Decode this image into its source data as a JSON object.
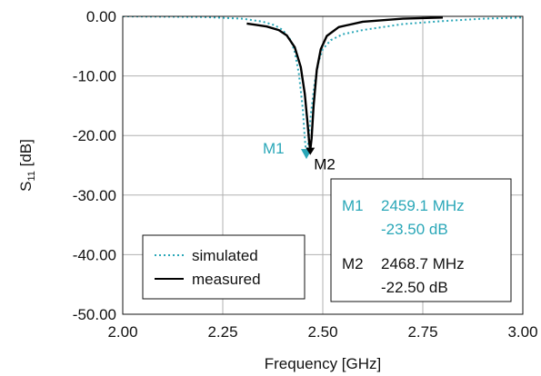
{
  "chart_data": {
    "type": "line",
    "xlabel": "Frequency [GHz]",
    "ylabel": "S11 [dB]",
    "ylabel_main": "S",
    "ylabel_sub": "11",
    "ylabel_unit": " [dB]",
    "xlim": [
      2.0,
      3.0
    ],
    "ylim": [
      -50.0,
      0.0
    ],
    "x_ticks": [
      2.0,
      2.25,
      2.5,
      2.75,
      3.0
    ],
    "x_tick_labels": [
      "2.00",
      "2.25",
      "2.50",
      "2.75",
      "3.00"
    ],
    "y_ticks": [
      0,
      -10,
      -20,
      -30,
      -40,
      -50
    ],
    "y_tick_labels": [
      "0.00",
      "-10.00",
      "-20.00",
      "-30.00",
      "-40.00",
      "-50.00"
    ],
    "grid": true,
    "legend_position": "lower-left",
    "series": [
      {
        "name": "simulated",
        "color": "#2aa7b8",
        "style": "dotted",
        "x": [
          2.0,
          2.2,
          2.3,
          2.35,
          2.38,
          2.4,
          2.42,
          2.43,
          2.44,
          2.45,
          2.455,
          2.459,
          2.465,
          2.47,
          2.48,
          2.49,
          2.5,
          2.52,
          2.55,
          2.6,
          2.7,
          2.8,
          2.9,
          3.0
        ],
        "y": [
          0.0,
          -0.1,
          -0.4,
          -0.9,
          -1.5,
          -2.3,
          -4.0,
          -6.0,
          -9.5,
          -15.5,
          -20.5,
          -23.5,
          -20.5,
          -16.5,
          -11.0,
          -7.5,
          -5.5,
          -4.0,
          -3.0,
          -2.3,
          -1.3,
          -0.8,
          -0.4,
          -0.2
        ]
      },
      {
        "name": "measured",
        "color": "#000000",
        "style": "solid",
        "x": [
          2.31,
          2.33,
          2.36,
          2.39,
          2.41,
          2.43,
          2.445,
          2.455,
          2.462,
          2.466,
          2.4687,
          2.472,
          2.477,
          2.485,
          2.495,
          2.51,
          2.54,
          2.6,
          2.7,
          2.8
        ],
        "y": [
          -1.2,
          -1.4,
          -1.7,
          -2.3,
          -3.2,
          -5.2,
          -8.5,
          -13.0,
          -18.0,
          -21.0,
          -22.5,
          -20.5,
          -15.0,
          -9.0,
          -5.5,
          -3.3,
          -1.8,
          -0.9,
          -0.4,
          -0.2
        ]
      }
    ],
    "markers": [
      {
        "name": "M1",
        "x": 2.4591,
        "y": -23.5,
        "color": "#2aa7b8",
        "freq": "2459.1 MHz",
        "value": "-23.50 dB"
      },
      {
        "name": "M2",
        "x": 2.4687,
        "y": -22.5,
        "color": "#000000",
        "freq": "2468.7 MHz",
        "value": "-22.50 dB"
      }
    ]
  }
}
